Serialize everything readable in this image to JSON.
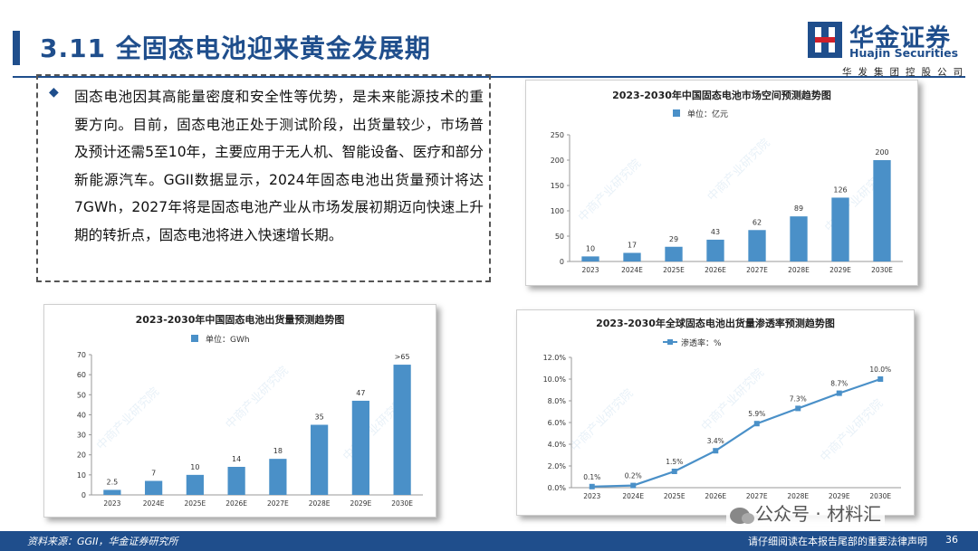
{
  "header": {
    "title": "3.11  全固态电池迎来黄金发展期"
  },
  "logo": {
    "cn": "华金证券",
    "en": "Huajin Securities",
    "sub": "华发集团控股公司"
  },
  "intro": {
    "text": "固态电池因其高能量密度和安全性等优势，是未来能源技术的重要方向。目前，固态电池正处于测试阶段，出货量较少，市场普及预计还需5至10年，主要应用于无人机、智能设备、医疗和部分新能源汽车。GGII数据显示，2024年固态电池出货量预计将达7GWh，2027年将是固态电池产业从市场发展初期迈向快速上升期的转折点，固态电池将进入快速增长期。"
  },
  "colors": {
    "brand": "#1f4e8c",
    "series": "#4a90c8"
  },
  "watermark": "中商产业研究院",
  "chart_data": [
    {
      "type": "bar",
      "title": "2023-2030年中国固态电池市场空间预测趋势图",
      "legend": "单位：亿元",
      "categories": [
        "2023",
        "2024E",
        "2025E",
        "2026E",
        "2027E",
        "2028E",
        "2029E",
        "2030E"
      ],
      "values": [
        10,
        17,
        29,
        43,
        62,
        89,
        126,
        200
      ],
      "value_labels": [
        "10",
        "17",
        "29",
        "43",
        "62",
        "89",
        "126",
        "200"
      ],
      "yticks": [
        "0",
        "50",
        "100",
        "150",
        "200",
        "250"
      ],
      "ylim": [
        0,
        250
      ],
      "grid": false
    },
    {
      "type": "bar",
      "title": "2023-2030年中国固态电池出货量预测趋势图",
      "legend": "单位：GWh",
      "categories": [
        "2023",
        "2024E",
        "2025E",
        "2026E",
        "2027E",
        "2028E",
        "2029E",
        "2030E"
      ],
      "values": [
        2.5,
        7,
        10,
        14,
        18,
        35,
        47,
        65
      ],
      "value_labels": [
        "2.5",
        "7",
        "10",
        "14",
        "18",
        "35",
        "47",
        ">65"
      ],
      "yticks": [
        "0",
        "10",
        "20",
        "30",
        "40",
        "50",
        "60",
        "70"
      ],
      "ylim": [
        0,
        70
      ],
      "grid": false
    },
    {
      "type": "line",
      "title": "2023-2030年全球固态电池出货量渗透率预测趋势图",
      "legend": "渗透率：%",
      "categories": [
        "2023",
        "2024E",
        "2025E",
        "2026E",
        "2027E",
        "2028E",
        "2029E",
        "2030E"
      ],
      "values": [
        0.1,
        0.2,
        1.5,
        3.4,
        5.9,
        7.3,
        8.7,
        10.0
      ],
      "value_labels": [
        "0.1%",
        "0.2%",
        "1.5%",
        "3.4%",
        "5.9%",
        "7.3%",
        "8.7%",
        "10.0%"
      ],
      "yticks": [
        "0.0%",
        "2.0%",
        "4.0%",
        "6.0%",
        "8.0%",
        "10.0%",
        "12.0%"
      ],
      "ylim": [
        0,
        12
      ],
      "grid": false
    }
  ],
  "footer": {
    "source": "资料来源：GGII，华金证券研究所",
    "disclaimer": "请仔细阅读在本报告尾部的重要法律声明",
    "page": "36"
  },
  "wechat": {
    "text": "公众号 · 材料汇"
  }
}
